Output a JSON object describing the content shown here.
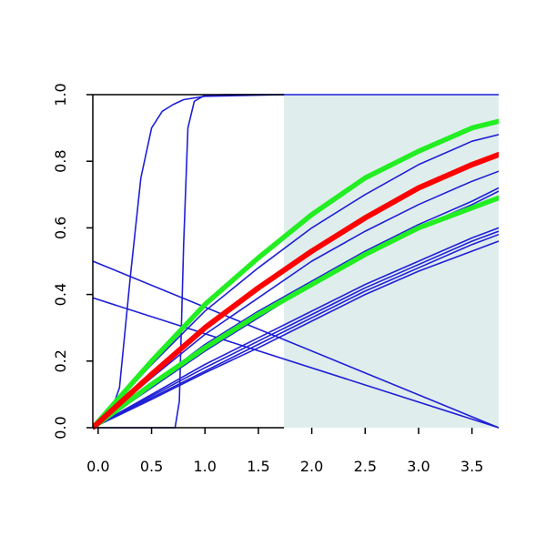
{
  "chart_data": {
    "type": "line",
    "title": "",
    "xlabel": "",
    "ylabel": "",
    "xlim": [
      -0.05,
      3.75
    ],
    "ylim": [
      0.0,
      1.0
    ],
    "x_ticks": [
      "0.0",
      "0.5",
      "1.0",
      "1.5",
      "2.0",
      "2.5",
      "3.0",
      "3.5"
    ],
    "y_ticks": [
      "0.0",
      "0.2",
      "0.4",
      "0.6",
      "0.8",
      "1.0"
    ],
    "grid": false,
    "shaded_region": {
      "x_start": 1.74,
      "x_end": 3.75,
      "color": "#e0eded"
    },
    "colors": {
      "blue": "#1f1fd6",
      "red": "#ff0000",
      "green": "#22ee22"
    },
    "series": [
      {
        "color": "blue",
        "width": 1.6,
        "points": [
          [
            -0.05,
            0.0
          ],
          [
            0.1,
            0.03
          ],
          [
            0.2,
            0.12
          ],
          [
            0.3,
            0.45
          ],
          [
            0.4,
            0.75
          ],
          [
            0.5,
            0.9
          ],
          [
            0.6,
            0.95
          ],
          [
            0.7,
            0.97
          ],
          [
            0.8,
            0.985
          ],
          [
            1.0,
            0.995
          ],
          [
            1.74,
            1.0
          ]
        ]
      },
      {
        "color": "blue",
        "width": 1.6,
        "points": [
          [
            -0.05,
            0.0
          ],
          [
            0.72,
            0.0
          ],
          [
            0.76,
            0.08
          ],
          [
            0.8,
            0.55
          ],
          [
            0.84,
            0.9
          ],
          [
            0.9,
            0.98
          ],
          [
            1.0,
            0.998
          ],
          [
            1.2,
            1.0
          ],
          [
            3.75,
            1.0
          ]
        ]
      },
      {
        "color": "blue",
        "width": 1.6,
        "points": [
          [
            -0.05,
            0.5
          ],
          [
            3.75,
            0.0
          ]
        ]
      },
      {
        "color": "blue",
        "width": 1.6,
        "points": [
          [
            -0.05,
            0.39
          ],
          [
            3.75,
            0.0
          ]
        ]
      },
      {
        "color": "blue",
        "width": 1.6,
        "points": [
          [
            -0.05,
            0.0
          ],
          [
            0.5,
            0.19
          ],
          [
            1.0,
            0.35
          ],
          [
            1.5,
            0.48
          ],
          [
            2.0,
            0.6
          ],
          [
            2.5,
            0.7
          ],
          [
            3.0,
            0.79
          ],
          [
            3.5,
            0.86
          ],
          [
            3.75,
            0.88
          ]
        ]
      },
      {
        "color": "blue",
        "width": 1.6,
        "points": [
          [
            -0.05,
            0.0
          ],
          [
            0.5,
            0.15
          ],
          [
            1.0,
            0.28
          ],
          [
            1.5,
            0.39
          ],
          [
            2.0,
            0.5
          ],
          [
            2.5,
            0.59
          ],
          [
            3.0,
            0.67
          ],
          [
            3.5,
            0.74
          ],
          [
            3.75,
            0.77
          ]
        ]
      },
      {
        "color": "blue",
        "width": 1.6,
        "points": [
          [
            -0.05,
            0.0
          ],
          [
            0.5,
            0.13
          ],
          [
            1.0,
            0.25
          ],
          [
            1.5,
            0.35
          ],
          [
            2.0,
            0.44
          ],
          [
            2.5,
            0.53
          ],
          [
            3.0,
            0.61
          ],
          [
            3.5,
            0.68
          ],
          [
            3.75,
            0.72
          ]
        ]
      },
      {
        "color": "blue",
        "width": 1.6,
        "points": [
          [
            -0.05,
            0.0
          ],
          [
            0.5,
            0.12
          ],
          [
            1.0,
            0.23
          ],
          [
            1.5,
            0.33
          ],
          [
            2.0,
            0.43
          ],
          [
            2.5,
            0.52
          ],
          [
            3.0,
            0.6
          ],
          [
            3.5,
            0.67
          ],
          [
            3.75,
            0.71
          ]
        ]
      },
      {
        "color": "blue",
        "width": 1.6,
        "points": [
          [
            -0.05,
            0.0
          ],
          [
            0.5,
            0.1
          ],
          [
            1.0,
            0.19
          ],
          [
            1.5,
            0.27
          ],
          [
            2.0,
            0.35
          ],
          [
            2.5,
            0.43
          ],
          [
            3.0,
            0.5
          ],
          [
            3.5,
            0.57
          ],
          [
            3.75,
            0.6
          ]
        ]
      },
      {
        "color": "blue",
        "width": 1.6,
        "points": [
          [
            -0.05,
            0.0
          ],
          [
            0.5,
            0.095
          ],
          [
            1.0,
            0.18
          ],
          [
            1.5,
            0.26
          ],
          [
            2.0,
            0.34
          ],
          [
            2.5,
            0.42
          ],
          [
            3.0,
            0.49
          ],
          [
            3.5,
            0.56
          ],
          [
            3.75,
            0.59
          ]
        ]
      },
      {
        "color": "blue",
        "width": 1.6,
        "points": [
          [
            -0.05,
            0.0
          ],
          [
            0.5,
            0.09
          ],
          [
            1.0,
            0.17
          ],
          [
            1.5,
            0.25
          ],
          [
            2.0,
            0.33
          ],
          [
            2.5,
            0.41
          ],
          [
            3.0,
            0.48
          ],
          [
            3.5,
            0.55
          ],
          [
            3.75,
            0.58
          ]
        ]
      },
      {
        "color": "blue",
        "width": 1.6,
        "points": [
          [
            -0.05,
            0.0
          ],
          [
            0.5,
            0.085
          ],
          [
            1.0,
            0.165
          ],
          [
            1.5,
            0.24
          ],
          [
            2.0,
            0.32
          ],
          [
            2.5,
            0.4
          ],
          [
            3.0,
            0.47
          ],
          [
            3.5,
            0.53
          ],
          [
            3.75,
            0.56
          ]
        ]
      },
      {
        "color": "green",
        "width": 5.5,
        "points": [
          [
            -0.05,
            0.0
          ],
          [
            0.5,
            0.2
          ],
          [
            1.0,
            0.37
          ],
          [
            1.5,
            0.51
          ],
          [
            2.0,
            0.64
          ],
          [
            2.5,
            0.75
          ],
          [
            3.0,
            0.83
          ],
          [
            3.5,
            0.9
          ],
          [
            3.75,
            0.92
          ]
        ]
      },
      {
        "color": "green",
        "width": 5.5,
        "points": [
          [
            -0.05,
            0.0
          ],
          [
            0.5,
            0.13
          ],
          [
            1.0,
            0.24
          ],
          [
            1.5,
            0.34
          ],
          [
            2.0,
            0.43
          ],
          [
            2.5,
            0.52
          ],
          [
            3.0,
            0.6
          ],
          [
            3.5,
            0.66
          ],
          [
            3.75,
            0.69
          ]
        ]
      },
      {
        "color": "red",
        "width": 6,
        "points": [
          [
            -0.05,
            0.0
          ],
          [
            0.5,
            0.16
          ],
          [
            1.0,
            0.3
          ],
          [
            1.5,
            0.42
          ],
          [
            2.0,
            0.53
          ],
          [
            2.5,
            0.63
          ],
          [
            3.0,
            0.72
          ],
          [
            3.5,
            0.79
          ],
          [
            3.75,
            0.82
          ]
        ]
      }
    ]
  }
}
